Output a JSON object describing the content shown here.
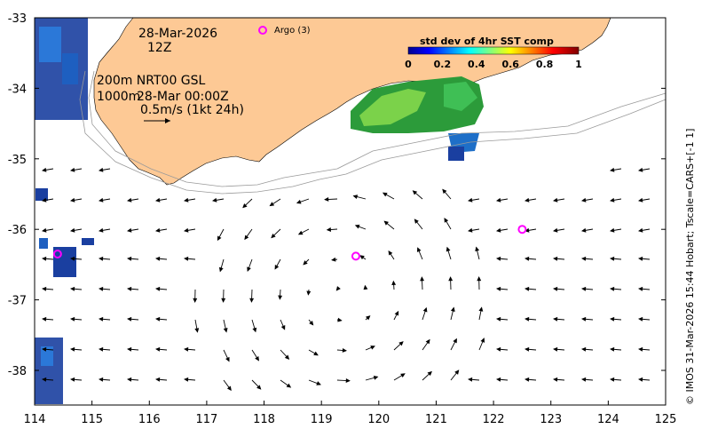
{
  "map": {
    "date": "28-Mar-2026",
    "time": "12Z",
    "depth_line": "200m  NRT00 GSL",
    "depth_line2_depth": "1000m",
    "depth_line2_time": "28-Mar 00:00Z",
    "scale_label": "0.5m/s (1kt 24h)",
    "argo_label": "Argo (3)",
    "colorbar_title": "std dev of 4hr SST comp",
    "colorbar_ticks": [
      "0",
      "0.2",
      "0.4",
      "0.6",
      "0.8",
      "1"
    ],
    "credit": "© IMOS 31-Mar-2026 15:44 Hobart; Tscale=CARS+[-1 1]",
    "x_ticks": [
      "114",
      "115",
      "116",
      "117",
      "118",
      "119",
      "120",
      "121",
      "122",
      "123",
      "124",
      "125"
    ],
    "y_ticks": [
      "-33",
      "-34",
      "-35",
      "-36",
      "-37",
      "-38"
    ],
    "land_color": "#fdc995",
    "argo_color": "#ff00ff"
  },
  "chart_data": {
    "type": "scatter",
    "title": "",
    "xlim": [
      114,
      125
    ],
    "ylim": [
      -38.5,
      -33
    ],
    "argo_floats": [
      {
        "lon": 114.4,
        "lat": -36.35
      },
      {
        "lon": 119.6,
        "lat": -36.38
      },
      {
        "lon": 122.5,
        "lat": -36.0
      }
    ]
  }
}
